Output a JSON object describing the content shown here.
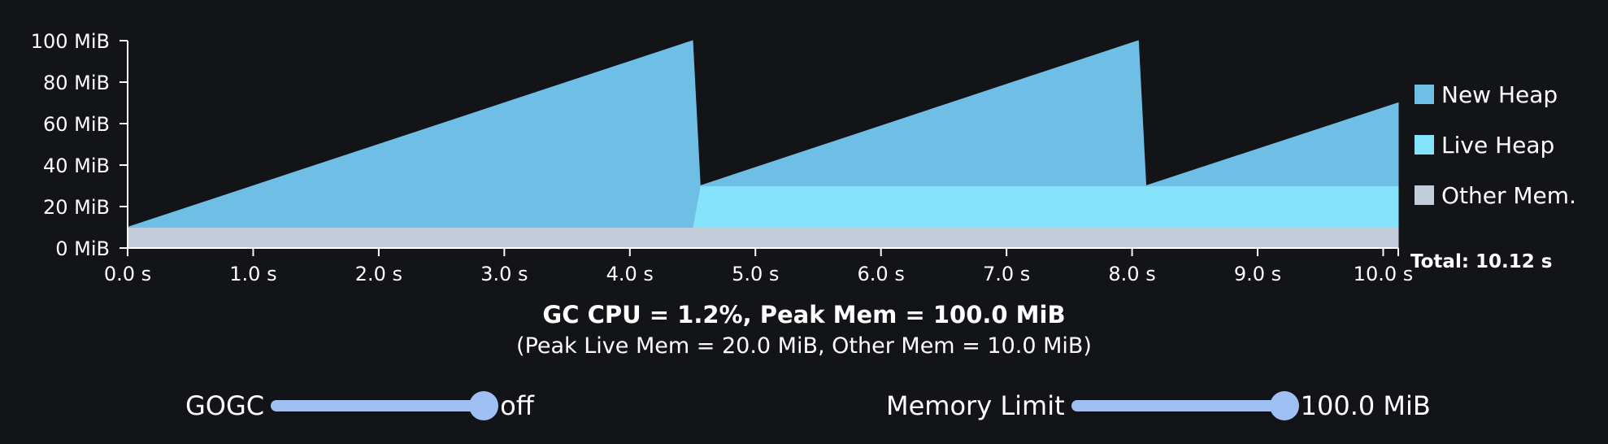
{
  "chart_data": {
    "type": "area",
    "x_unit": "s",
    "y_unit": "MiB",
    "xlim": [
      0,
      10.12
    ],
    "ylim": [
      0,
      100
    ],
    "x_ticks": [
      "0.0 s",
      "1.0 s",
      "2.0 s",
      "3.0 s",
      "4.0 s",
      "5.0 s",
      "6.0 s",
      "7.0 s",
      "8.0 s",
      "9.0 s",
      "10.0 s"
    ],
    "y_ticks": [
      "0 MiB",
      "20 MiB",
      "40 MiB",
      "60 MiB",
      "80 MiB",
      "100 MiB"
    ],
    "series": [
      {
        "name": "Other Mem.",
        "color": "#c2ccdb",
        "x": [
          0,
          10.12
        ],
        "y": [
          10,
          10
        ]
      },
      {
        "name": "Live Heap",
        "color": "#84e3fa",
        "x": [
          0,
          4.5,
          4.56,
          8.05,
          8.11,
          10.12
        ],
        "y": [
          0,
          0,
          20,
          20,
          20,
          20
        ]
      },
      {
        "name": "New Heap",
        "color": "#6fbee6",
        "x": [
          0,
          4.5,
          4.56,
          8.05,
          8.11,
          10.12
        ],
        "y": [
          0,
          90,
          0,
          70,
          0,
          40
        ]
      }
    ],
    "legend": [
      "New Heap",
      "Live Heap",
      "Other Mem."
    ],
    "legend_position": "right",
    "total_label": "Total: 10.12 s",
    "grid": false
  },
  "summary": {
    "main": "GC CPU = 1.2%, Peak Mem = 100.0 MiB",
    "sub": "(Peak Live Mem = 20.0 MiB, Other Mem = 10.0 MiB)"
  },
  "controls": {
    "gogc": {
      "label": "GOGC",
      "value_text": "off",
      "position": 1.0
    },
    "memory_limit": {
      "label": "Memory Limit",
      "value_text": "100.0 MiB",
      "position": 1.0
    }
  }
}
